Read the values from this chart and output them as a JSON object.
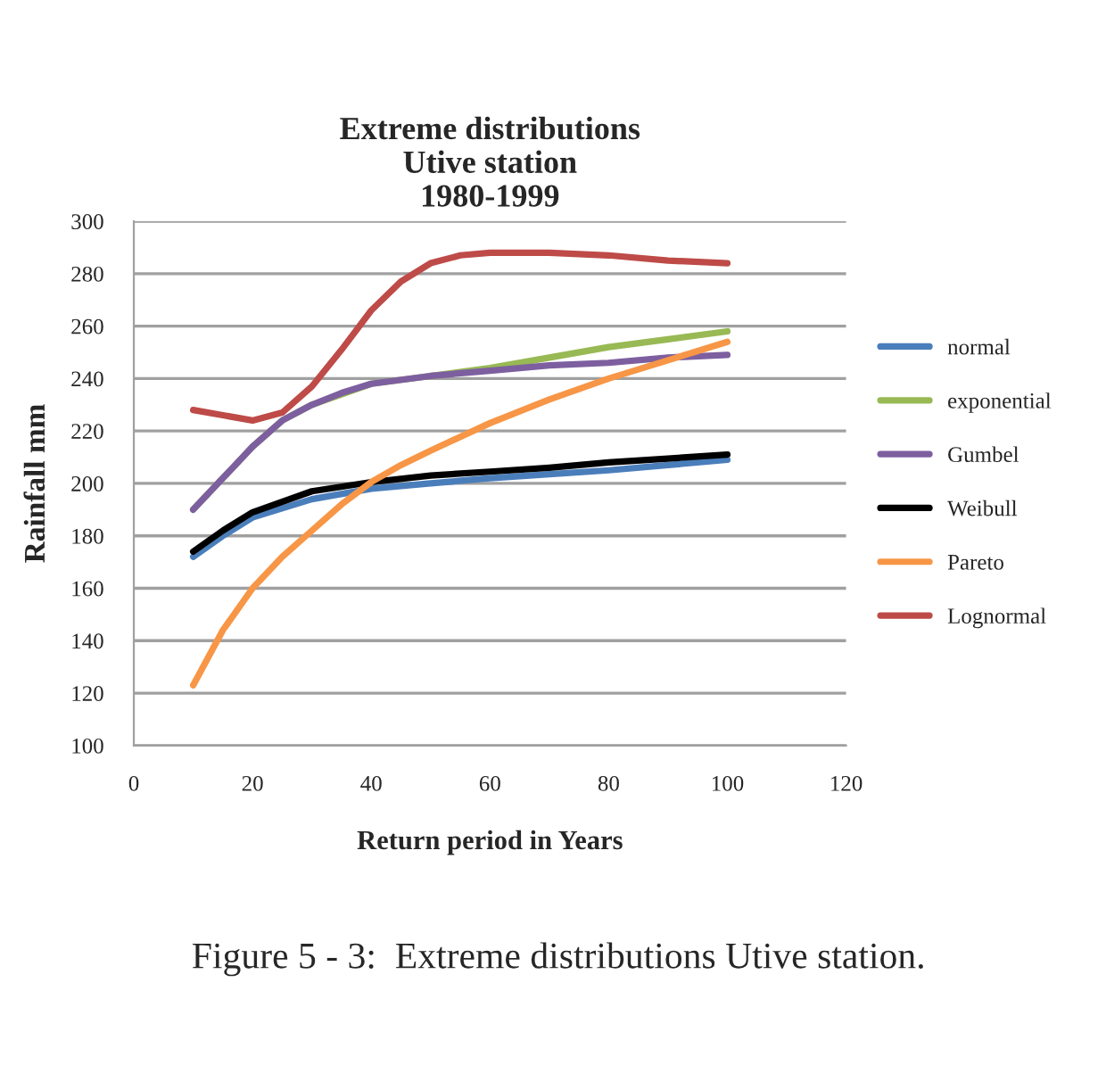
{
  "chart_data": {
    "type": "line",
    "title": "Extreme distributions\nUtive station\n1980-1999",
    "xlabel": "Return period in Years",
    "ylabel": "Rainfall mm",
    "series": [
      {
        "name": "normal",
        "color": "#4a7ebb",
        "x": [
          10,
          15,
          20,
          30,
          40,
          50,
          60,
          70,
          80,
          90,
          100
        ],
        "values": [
          172,
          180,
          187,
          194,
          198,
          200,
          202,
          203.5,
          205,
          207,
          209
        ]
      },
      {
        "name": "exponential",
        "color": "#98b954",
        "x": [
          10,
          15,
          20,
          25,
          30,
          35,
          40,
          50,
          60,
          70,
          80,
          90,
          100
        ],
        "values": [
          190,
          202,
          214,
          224,
          230,
          234,
          238,
          241,
          244,
          248,
          252,
          255,
          258
        ]
      },
      {
        "name": "Gumbel",
        "color": "#7d5fa0",
        "x": [
          10,
          15,
          20,
          25,
          30,
          35,
          40,
          50,
          60,
          70,
          80,
          90,
          100
        ],
        "values": [
          190,
          202,
          214,
          224,
          230,
          234.5,
          238,
          241,
          243,
          245,
          246,
          248,
          249
        ]
      },
      {
        "name": "Weibull",
        "color": "#000000",
        "x": [
          10,
          15,
          20,
          30,
          40,
          50,
          60,
          70,
          80,
          90,
          100
        ],
        "values": [
          174,
          182,
          189,
          197,
          200.5,
          203,
          204.5,
          206,
          208,
          209.5,
          211
        ]
      },
      {
        "name": "Pareto",
        "color": "#f79646",
        "x": [
          10,
          15,
          20,
          25,
          30,
          35,
          40,
          45,
          50,
          60,
          70,
          80,
          90,
          100
        ],
        "values": [
          123,
          144,
          160,
          172,
          182,
          192,
          200.5,
          207,
          212.5,
          223,
          232,
          240,
          247,
          254
        ]
      },
      {
        "name": "Lognormal",
        "color": "#be4b48",
        "x": [
          10,
          15,
          20,
          25,
          30,
          35,
          40,
          45,
          50,
          55,
          60,
          70,
          80,
          90,
          100
        ],
        "values": [
          228,
          226,
          224,
          227,
          237,
          251,
          266,
          277,
          284,
          287,
          288,
          288,
          287,
          285,
          284
        ]
      }
    ],
    "xlim": [
      0,
      120
    ],
    "xticks": [
      0,
      20,
      40,
      60,
      80,
      100,
      120
    ],
    "ylim": [
      100,
      300
    ],
    "yticks": [
      100,
      120,
      140,
      160,
      180,
      200,
      220,
      240,
      260,
      280,
      300
    ],
    "grid": "y",
    "legend": "right",
    "line_style": "solid",
    "annotations": [
      "Figure 5 - 3:  Extreme distributions Utive station."
    ]
  }
}
